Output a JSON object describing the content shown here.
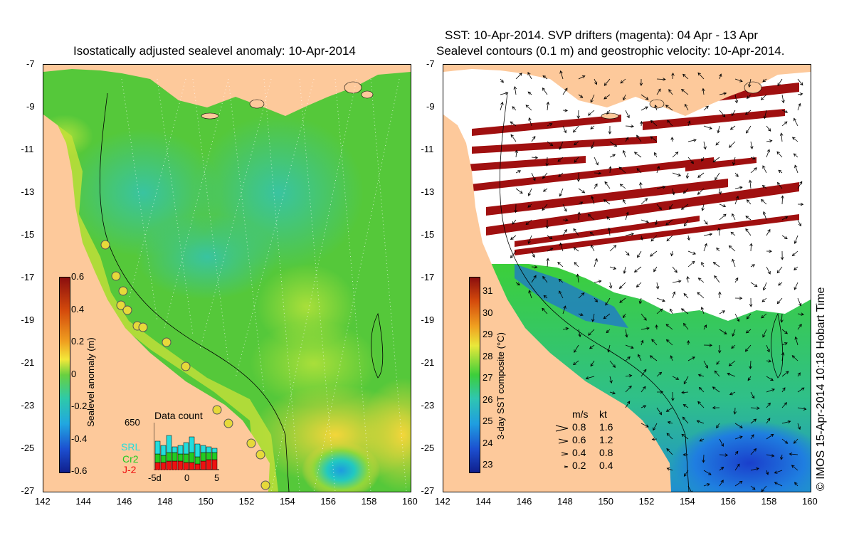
{
  "left_map": {
    "title": "Isostatically adjusted sealevel anomaly: 10-Apr-2014",
    "x_ticks": [
      "142",
      "144",
      "146",
      "148",
      "150",
      "152",
      "154",
      "156",
      "158",
      "160"
    ],
    "y_ticks": [
      "-7",
      "-9",
      "-11",
      "-13",
      "-15",
      "-17",
      "-19",
      "-21",
      "-23",
      "-25",
      "-27"
    ],
    "colorbar": {
      "label": "Sealevel anomaly (m)",
      "ticks": [
        "0.6",
        "0.4",
        "0.2",
        "0",
        "-0.2",
        "-0.4",
        "-0.6"
      ]
    },
    "data_count": {
      "title": "Data count",
      "max": "650",
      "x_labels": [
        "-5d",
        "0",
        "5"
      ],
      "series": [
        {
          "name": "SRL",
          "color": "#22dddd"
        },
        {
          "name": "Cr2",
          "color": "#22cc22"
        },
        {
          "name": "J-2",
          "color": "#ee1111"
        }
      ]
    }
  },
  "right_map": {
    "title_line1": "SST: 10-Apr-2014. SVP drifters (magenta): 04 Apr - 13 Apr",
    "title_line2": "Sealevel contours (0.1 m) and geostrophic velocity: 10-Apr-2014.",
    "x_ticks": [
      "142",
      "144",
      "146",
      "148",
      "150",
      "152",
      "154",
      "156",
      "158",
      "160"
    ],
    "y_ticks": [
      "-7",
      "-9",
      "-11",
      "-13",
      "-15",
      "-17",
      "-19",
      "-21",
      "-23",
      "-25",
      "-27"
    ],
    "colorbar": {
      "label": "3-day SST composite (°C)",
      "ticks": [
        "31",
        "30",
        "29",
        "28",
        "27",
        "26",
        "25",
        "24",
        "23"
      ]
    },
    "velocity_legend": {
      "units": [
        "m/s",
        "kt"
      ],
      "rows": [
        [
          "0.8",
          "1.6"
        ],
        [
          "0.6",
          "1.2"
        ],
        [
          "0.4",
          "0.8"
        ],
        [
          "0.2",
          "0.4"
        ]
      ]
    }
  },
  "copyright": "© IMOS 15-Apr-2014 10:18 Hobart Time",
  "colors": {
    "land": "#fdc99b",
    "ocean_green": "#4ccf33",
    "cloud": "#ffffff",
    "stripe": "#a01010"
  }
}
